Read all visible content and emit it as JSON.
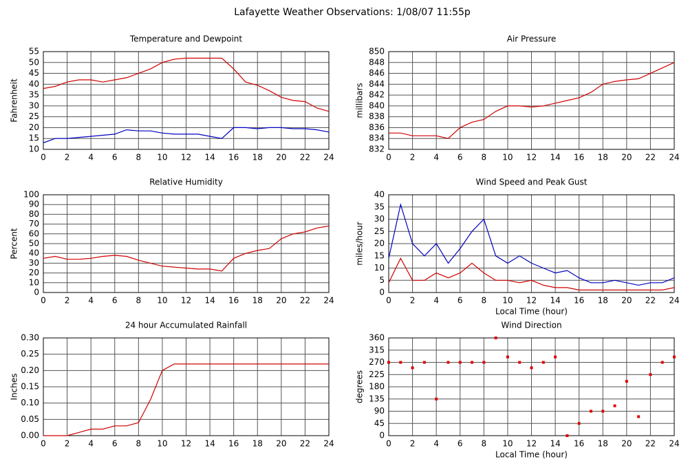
{
  "title": "Lafayette Weather Observations: 1/08/07 11:55p",
  "chart_data": [
    {
      "type": "line",
      "title": "Temperature and Dewpoint",
      "y_label": "Fahrenheit",
      "x": [
        0,
        1,
        2,
        3,
        4,
        5,
        6,
        7,
        8,
        9,
        10,
        11,
        12,
        13,
        14,
        15,
        16,
        17,
        18,
        19,
        20,
        21,
        22,
        23,
        24
      ],
      "series": [
        {
          "color": "#d00000",
          "values": [
            38,
            39,
            41,
            42,
            42,
            41,
            42,
            43,
            45,
            47,
            50,
            51.5,
            52,
            52,
            52,
            52,
            47,
            41,
            39.5,
            37,
            34,
            32.5,
            32,
            29,
            27.5
          ]
        },
        {
          "color": "#0000c0",
          "values": [
            13,
            15,
            15,
            15.5,
            16,
            16.5,
            17,
            19,
            18.5,
            18.5,
            17.5,
            17,
            17,
            17,
            16,
            15,
            20,
            20,
            19.5,
            20,
            20,
            19.5,
            19.5,
            19,
            18
          ]
        }
      ],
      "xlim": [
        0,
        24
      ],
      "xticks": [
        0,
        2,
        4,
        6,
        8,
        10,
        12,
        14,
        16,
        18,
        20,
        22,
        24
      ],
      "ylim": [
        10,
        55
      ],
      "yticks": [
        10,
        15,
        20,
        25,
        30,
        35,
        40,
        45,
        50,
        55
      ],
      "grid": true
    },
    {
      "type": "line",
      "title": "Air Pressure",
      "y_label": "millibars",
      "x": [
        0,
        1,
        2,
        3,
        4,
        5,
        6,
        7,
        8,
        9,
        10,
        11,
        12,
        13,
        14,
        15,
        16,
        17,
        18,
        19,
        20,
        21,
        22,
        23,
        24
      ],
      "series": [
        {
          "color": "#d00000",
          "values": [
            835,
            835,
            834.5,
            834.5,
            834.5,
            834,
            836,
            837,
            837.5,
            839,
            840,
            840,
            839.8,
            840,
            840.5,
            841,
            841.5,
            842.5,
            844,
            844.5,
            844.8,
            845,
            846,
            847,
            848
          ]
        }
      ],
      "xlim": [
        0,
        24
      ],
      "xticks": [
        0,
        2,
        4,
        6,
        8,
        10,
        12,
        14,
        16,
        18,
        20,
        22,
        24
      ],
      "ylim": [
        832,
        850
      ],
      "yticks": [
        832,
        834,
        836,
        838,
        840,
        842,
        844,
        846,
        848,
        850
      ],
      "grid": true
    },
    {
      "type": "line",
      "title": "Relative Humidity",
      "y_label": "Percent",
      "x": [
        0,
        1,
        2,
        3,
        4,
        5,
        6,
        7,
        8,
        9,
        10,
        11,
        12,
        13,
        14,
        15,
        16,
        17,
        18,
        19,
        20,
        21,
        22,
        23,
        24
      ],
      "series": [
        {
          "color": "#d00000",
          "values": [
            35,
            37,
            34,
            34,
            35,
            37,
            38,
            37,
            33,
            30,
            27,
            26,
            25,
            24,
            24,
            22,
            35,
            40,
            43,
            45,
            55,
            60,
            62,
            66,
            68
          ]
        }
      ],
      "xlim": [
        0,
        24
      ],
      "xticks": [
        0,
        2,
        4,
        6,
        8,
        10,
        12,
        14,
        16,
        18,
        20,
        22,
        24
      ],
      "ylim": [
        0,
        100
      ],
      "yticks": [
        0,
        10,
        20,
        30,
        40,
        50,
        60,
        70,
        80,
        90,
        100
      ],
      "grid": true
    },
    {
      "type": "line",
      "title": "Wind Speed and Peak Gust",
      "y_label": "miles/hour",
      "x_label": "Local Time (hour)",
      "x": [
        0,
        1,
        2,
        3,
        4,
        5,
        6,
        7,
        8,
        9,
        10,
        11,
        12,
        13,
        14,
        15,
        16,
        17,
        18,
        19,
        20,
        21,
        22,
        23,
        24
      ],
      "series": [
        {
          "color": "#0000c0",
          "values": [
            14,
            36,
            20,
            15,
            20,
            12,
            18,
            25,
            30,
            15,
            12,
            15,
            12,
            10,
            8,
            9,
            6,
            4,
            4,
            5,
            4,
            3,
            4,
            4,
            6
          ]
        },
        {
          "color": "#d00000",
          "values": [
            4,
            14,
            5,
            5,
            8,
            6,
            8,
            12,
            8,
            5,
            5,
            4,
            5,
            3,
            2,
            2,
            1,
            1,
            1,
            1,
            1,
            1,
            1,
            1,
            2
          ]
        }
      ],
      "xlim": [
        0,
        24
      ],
      "xticks": [
        0,
        2,
        4,
        6,
        8,
        10,
        12,
        14,
        16,
        18,
        20,
        22,
        24
      ],
      "ylim": [
        0,
        40
      ],
      "yticks": [
        0,
        5,
        10,
        15,
        20,
        25,
        30,
        35,
        40
      ],
      "grid": true
    },
    {
      "type": "line",
      "title": "24 hour Accumulated Rainfall",
      "y_label": "Inches",
      "x": [
        0,
        1,
        2,
        3,
        4,
        5,
        6,
        7,
        8,
        9,
        10,
        11,
        12,
        13,
        14,
        15,
        16,
        17,
        18,
        19,
        20,
        21,
        22,
        23,
        24
      ],
      "series": [
        {
          "color": "#d00000",
          "values": [
            0,
            0,
            0,
            0.01,
            0.02,
            0.02,
            0.03,
            0.03,
            0.04,
            0.11,
            0.2,
            0.22,
            0.22,
            0.22,
            0.22,
            0.22,
            0.22,
            0.22,
            0.22,
            0.22,
            0.22,
            0.22,
            0.22,
            0.22,
            0.22
          ]
        }
      ],
      "xlim": [
        0,
        24
      ],
      "xticks": [
        0,
        2,
        4,
        6,
        8,
        10,
        12,
        14,
        16,
        18,
        20,
        22,
        24
      ],
      "ylim": [
        0,
        0.3
      ],
      "yticks": [
        {
          "value": 0,
          "label": "0.00"
        },
        {
          "value": 0.05,
          "label": "0.05"
        },
        {
          "value": 0.1,
          "label": "0.10"
        },
        {
          "value": 0.15,
          "label": "0.15"
        },
        {
          "value": 0.2,
          "label": "0.20"
        },
        {
          "value": 0.25,
          "label": "0.25"
        },
        {
          "value": 0.3,
          "label": "0.30"
        }
      ],
      "grid": true
    },
    {
      "type": "scatter",
      "title": "Wind Direction",
      "y_label": "degrees",
      "x_label": "Local Time (hour)",
      "color": "#e00000",
      "x": [
        0,
        1,
        2,
        3,
        4,
        5,
        6,
        7,
        8,
        9,
        10,
        11,
        12,
        13,
        14,
        15,
        16,
        17,
        18,
        19,
        20,
        21,
        22,
        23,
        24
      ],
      "values": [
        270,
        270,
        250,
        270,
        135,
        270,
        270,
        270,
        270,
        360,
        290,
        270,
        250,
        270,
        290,
        0,
        45,
        90,
        90,
        110,
        200,
        70,
        225,
        270,
        290
      ],
      "xlim": [
        0,
        24
      ],
      "xticks": [
        0,
        2,
        4,
        6,
        8,
        10,
        12,
        14,
        16,
        18,
        20,
        22,
        24
      ],
      "ylim": [
        0,
        360
      ],
      "yticks": [
        0,
        45,
        90,
        135,
        180,
        225,
        270,
        315,
        360
      ],
      "grid": true
    }
  ]
}
